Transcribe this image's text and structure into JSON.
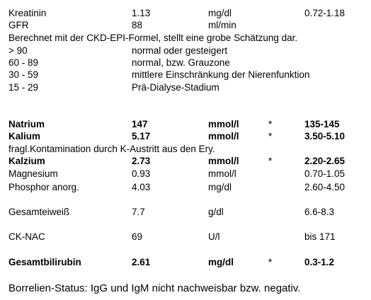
{
  "kidney": {
    "kreatinin": {
      "name": "Kreatinin",
      "value": "1.13",
      "unit": "mg/dl",
      "ref": "0.72-1.18"
    },
    "gfr": {
      "name": "GFR",
      "value": "88",
      "unit": "ml/min"
    },
    "note": "Berechnet mit der CKD-EPI-Formel, stellt eine grobe Schätzung dar.",
    "stages": [
      {
        "range": "> 90",
        "text": "normal oder gesteigert"
      },
      {
        "range": "60 - 89",
        "text": "normal, bzw. Grauzone"
      },
      {
        "range": "30 - 59",
        "text": "mittlere Einschränkung der Nierenfunktion"
      },
      {
        "range": "15 - 29",
        "text": "Prä-Dialyse-Stadium"
      }
    ]
  },
  "electrolytes": {
    "natrium": {
      "name": "Natrium",
      "value": "147",
      "unit": "mmol/l",
      "flag": "*",
      "ref": "135-145"
    },
    "kalium": {
      "name": "Kalium",
      "value": "5.17",
      "unit": "mmol/l",
      "flag": "*",
      "ref": "3.50-5.10"
    },
    "kalium_note": "fragl.Kontamination durch K-Austritt aus den Ery.",
    "kalzium": {
      "name": "Kalzium",
      "value": "2.73",
      "unit": "mmol/l",
      "flag": "*",
      "ref": "2.20-2.65"
    },
    "magnesium": {
      "name": "Magnesium",
      "value": "0.93",
      "unit": "mmol/l",
      "ref": "0.70-1.05"
    },
    "phosphor": {
      "name": "Phosphor anorg.",
      "value": "4.03",
      "unit": "mg/dl",
      "ref": "2.60-4.50"
    }
  },
  "protein": {
    "name": "Gesamteiweiß",
    "value": "7.7",
    "unit": "g/dl",
    "ref": "6.6-8.3"
  },
  "cknac": {
    "name": "CK-NAC",
    "value": "69",
    "unit": "U/l",
    "ref": "bis 171"
  },
  "bilirubin": {
    "name": "Gesamtbilirubin",
    "value": "2.61",
    "unit": "mg/dl",
    "flag": "*",
    "ref": "0.3-1.2"
  },
  "footer": "Borrelien-Status: IgG und IgM nicht nachweisbar bzw. negativ."
}
